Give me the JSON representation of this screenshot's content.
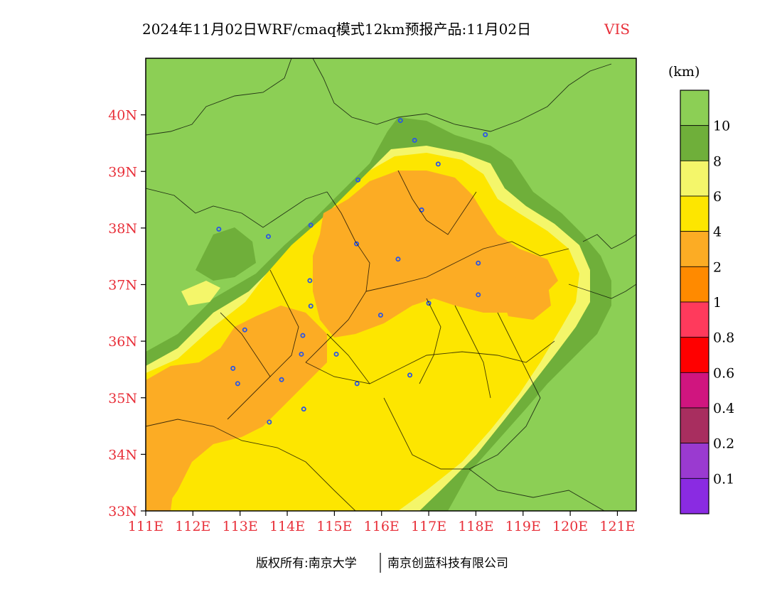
{
  "title": {
    "main": "2024年11月02日WRF/cmaq模式12km预报产品:11月02日",
    "variable": "VIS"
  },
  "legend": {
    "unit": "(km)",
    "classes": [
      {
        "label": "10",
        "color": "#8ccf55"
      },
      {
        "label": "8",
        "color": "#6faf3a"
      },
      {
        "label": "6",
        "color": "#f4f66a"
      },
      {
        "label": "4",
        "color": "#fde600"
      },
      {
        "label": "2",
        "color": "#fcac24"
      },
      {
        "label": "1",
        "color": "#ff8a00"
      },
      {
        "label": "0.8",
        "color": "#ff3a5c"
      },
      {
        "label": "0.6",
        "color": "#ff0000"
      },
      {
        "label": "0.4",
        "color": "#d0157f"
      },
      {
        "label": "0.2",
        "color": "#a82e5f"
      },
      {
        "label": "0.1",
        "color": "#9a3ad0"
      },
      {
        "label": "",
        "color": "#8a2be2"
      }
    ]
  },
  "axes": {
    "lon_ticks": [
      "111E",
      "112E",
      "113E",
      "114E",
      "115E",
      "116E",
      "117E",
      "118E",
      "119E",
      "120E",
      "121E"
    ],
    "lat_ticks": [
      "33N",
      "34N",
      "35N",
      "36N",
      "37N",
      "38N",
      "39N",
      "40N"
    ],
    "lon_range": [
      111,
      121.4
    ],
    "lat_range": [
      33,
      41
    ]
  },
  "stations": [
    [
      116.4,
      39.9
    ],
    [
      116.7,
      39.55
    ],
    [
      118.2,
      39.65
    ],
    [
      117.2,
      39.13
    ],
    [
      115.5,
      38.85
    ],
    [
      112.55,
      37.98
    ],
    [
      113.6,
      37.85
    ],
    [
      114.5,
      38.05
    ],
    [
      116.85,
      38.32
    ],
    [
      115.47,
      37.72
    ],
    [
      116.35,
      37.45
    ],
    [
      118.05,
      37.38
    ],
    [
      114.48,
      37.07
    ],
    [
      117.0,
      36.67
    ],
    [
      114.5,
      36.62
    ],
    [
      115.98,
      36.46
    ],
    [
      118.05,
      36.82
    ],
    [
      113.1,
      36.2
    ],
    [
      114.33,
      36.1
    ],
    [
      114.3,
      35.77
    ],
    [
      115.04,
      35.77
    ],
    [
      112.85,
      35.52
    ],
    [
      112.95,
      35.25
    ],
    [
      113.88,
      35.32
    ],
    [
      115.48,
      35.25
    ],
    [
      116.6,
      35.4
    ],
    [
      114.35,
      34.8
    ],
    [
      113.62,
      34.57
    ]
  ],
  "footer": {
    "left": "版权所有:南京大学",
    "right": "南京创蓝科技有限公司"
  }
}
